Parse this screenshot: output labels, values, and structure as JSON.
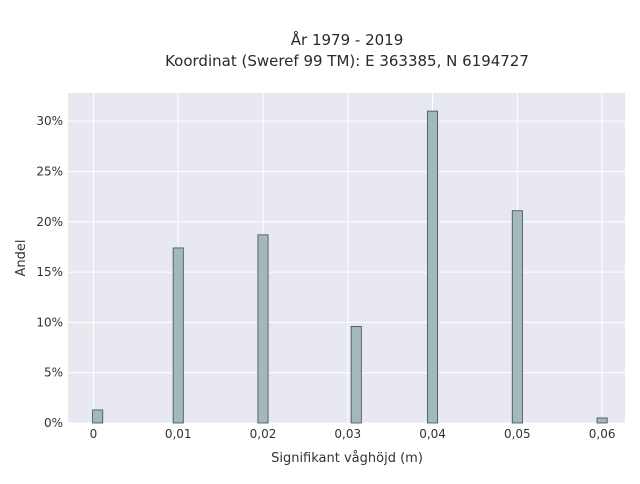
{
  "chart_data": {
    "type": "bar",
    "title_lines": [
      "År 1979 - 2019",
      "Koordinat (Sweref 99 TM): E 363385, N 6194727"
    ],
    "xlabel": "Signifikant våghöjd (m)",
    "ylabel": "Andel",
    "x_ticks": [
      0,
      0.01,
      0.02,
      0.03,
      0.04,
      0.05,
      0.06
    ],
    "x_tick_labels": [
      "0",
      "0,01",
      "0,02",
      "0,03",
      "0,04",
      "0,05",
      "0,06"
    ],
    "y_ticks": [
      0,
      5,
      10,
      15,
      20,
      25,
      30
    ],
    "y_tick_labels": [
      "0%",
      "5%",
      "10%",
      "15%",
      "20%",
      "25%",
      "30%"
    ],
    "xlim": [
      -0.003,
      0.0627
    ],
    "ylim": [
      0,
      32.8
    ],
    "bar_width": 0.0012,
    "x": [
      0.0005,
      0.01,
      0.02,
      0.031,
      0.04,
      0.05,
      0.06
    ],
    "values": [
      1.3,
      17.4,
      18.7,
      9.6,
      31.0,
      21.1,
      0.5
    ],
    "grid": true,
    "colors": {
      "bar_fill": "#a3b9b9",
      "bar_stroke": "#3b4d4d",
      "plot_background": "#e8e8f0",
      "grid": "#ffffff"
    }
  }
}
